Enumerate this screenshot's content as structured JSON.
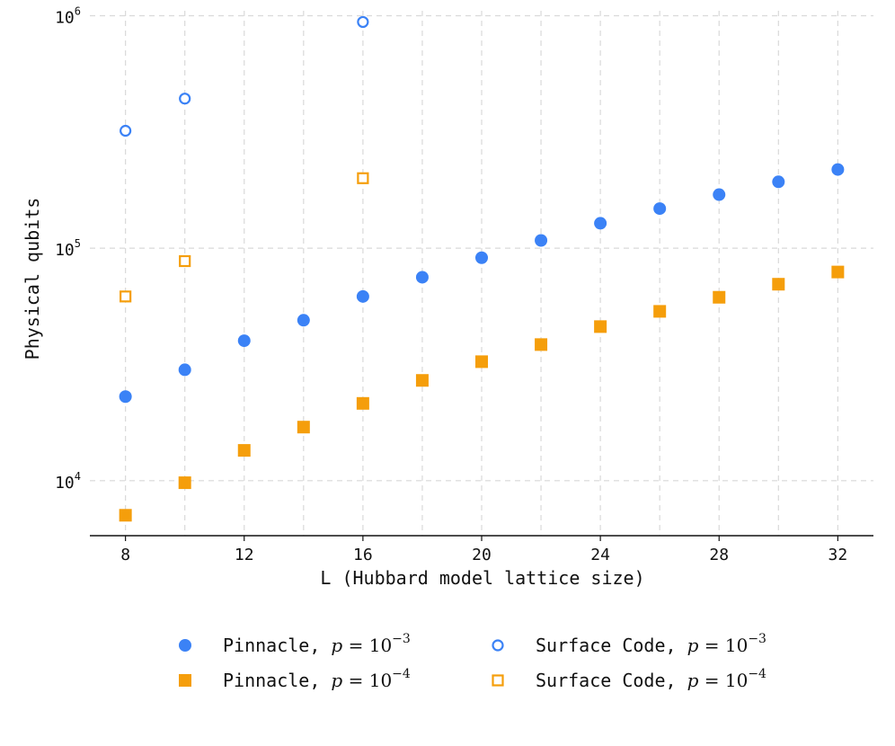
{
  "colors": {
    "blue": "#3b82f6",
    "orange": "#f59e0b",
    "grid": "#d9d9d9",
    "axis": "#111111"
  },
  "chart_data": {
    "type": "scatter",
    "title": "",
    "xlabel": "L (Hubbard model lattice size)",
    "ylabel": "Physical qubits",
    "xlim": [
      6.8,
      33.2
    ],
    "ylim": [
      5800,
      1050000
    ],
    "yscale": "log",
    "grid": true,
    "legend_position": "bottom-center",
    "xticks": [
      8,
      12,
      16,
      20,
      24,
      28,
      32
    ],
    "xtick_labels": [
      "8",
      "12",
      "16",
      "20",
      "24",
      "28",
      "32"
    ],
    "yticks": [
      10000,
      100000,
      1000000
    ],
    "ytick_labels": [
      {
        "base": "10",
        "exp": "4"
      },
      {
        "base": "10",
        "exp": "5"
      },
      {
        "base": "10",
        "exp": "6"
      }
    ],
    "series": [
      {
        "name": "Pinnacle, p = 10⁻³",
        "label_text": "Pinnacle, ",
        "p_base": "10",
        "p_exp": "−3",
        "color": "#3b82f6",
        "marker": "circle",
        "filled": true,
        "x": [
          8,
          10,
          12,
          14,
          16,
          18,
          20,
          22,
          24,
          26,
          28,
          30,
          32
        ],
        "y": [
          23000,
          30000,
          40000,
          49000,
          62000,
          75000,
          91000,
          108000,
          128000,
          148000,
          170000,
          193000,
          218000
        ]
      },
      {
        "name": "Pinnacle, p = 10⁻⁴",
        "label_text": "Pinnacle, ",
        "p_base": "10",
        "p_exp": "−4",
        "color": "#f59e0b",
        "marker": "square",
        "filled": true,
        "x": [
          8,
          10,
          12,
          14,
          16,
          18,
          20,
          22,
          24,
          26,
          28,
          30,
          32
        ],
        "y": [
          7100,
          9800,
          13500,
          17000,
          21500,
          27000,
          32500,
          38500,
          46000,
          53500,
          61500,
          70000,
          79000
        ]
      },
      {
        "name": "Surface Code, p = 10⁻³",
        "label_text": "Surface Code, ",
        "p_base": "10",
        "p_exp": "−3",
        "color": "#3b82f6",
        "marker": "circle",
        "filled": false,
        "x": [
          8,
          10,
          16
        ],
        "y": [
          320000,
          440000,
          940000
        ]
      },
      {
        "name": "Surface Code, p = 10⁻⁴",
        "label_text": "Surface Code, ",
        "p_base": "10",
        "p_exp": "−4",
        "color": "#f59e0b",
        "marker": "square",
        "filled": false,
        "x": [
          8,
          10,
          16
        ],
        "y": [
          62000,
          88000,
          200000
        ]
      }
    ]
  }
}
